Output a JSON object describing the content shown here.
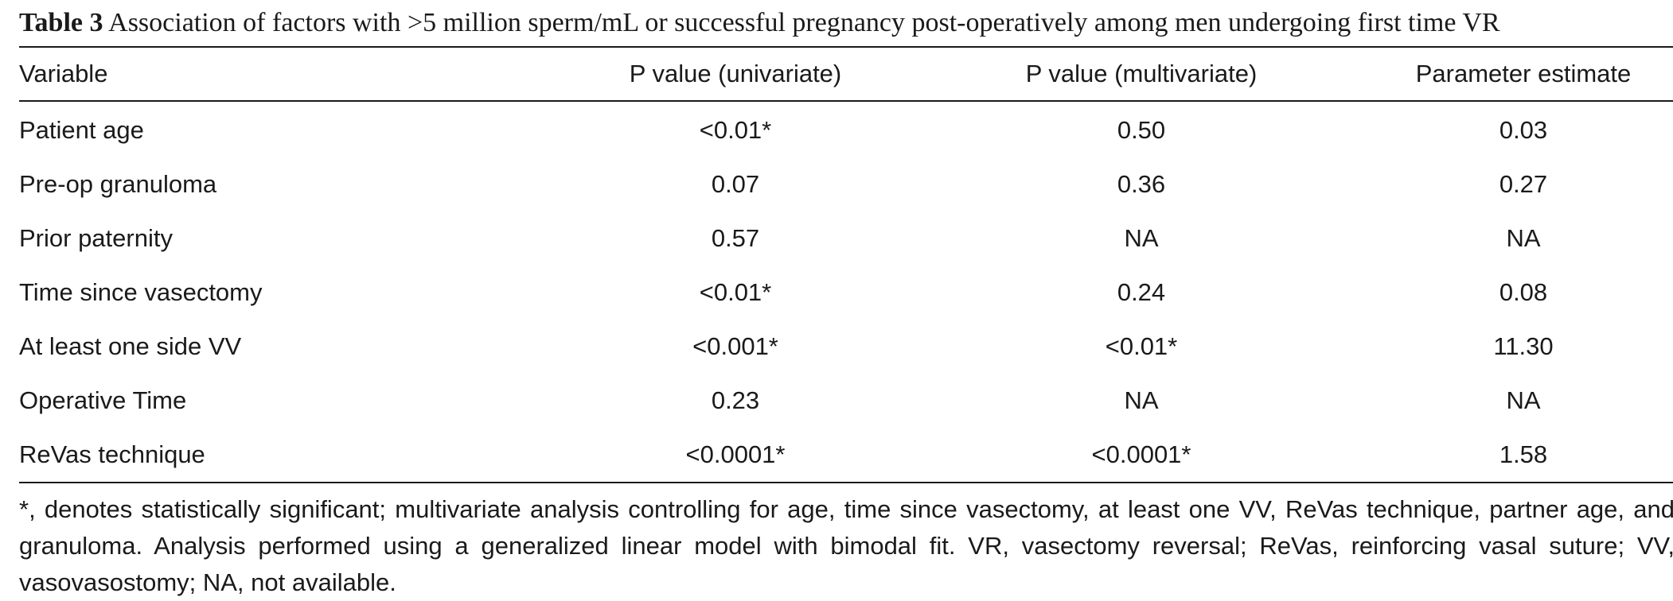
{
  "caption": {
    "label": "Table 3",
    "text": "Association of factors with >5 million sperm/mL or successful pregnancy post-operatively among men undergoing first time VR"
  },
  "columns": [
    "Variable",
    "P value (univariate)",
    "P value (multivariate)",
    "Parameter estimate"
  ],
  "rows": [
    [
      "Patient age",
      "<0.01*",
      "0.50",
      "0.03"
    ],
    [
      "Pre-op granuloma",
      "0.07",
      "0.36",
      "0.27"
    ],
    [
      "Prior paternity",
      "0.57",
      "NA",
      "NA"
    ],
    [
      "Time since vasectomy",
      "<0.01*",
      "0.24",
      "0.08"
    ],
    [
      "At least one side VV",
      "<0.001*",
      "<0.01*",
      "11.30"
    ],
    [
      "Operative Time",
      "0.23",
      "NA",
      "NA"
    ],
    [
      "ReVas technique",
      "<0.0001*",
      "<0.0001*",
      "1.58"
    ]
  ],
  "footnote": "*, denotes statistically significant; multivariate analysis controlling for age, time since vasectomy, at least one VV, ReVas technique, partner age, and granuloma. Analysis performed using a generalized linear model with bimodal fit. VR, vasectomy reversal; ReVas, reinforcing vasal suture; VV, vasovasostomy; NA, not available."
}
